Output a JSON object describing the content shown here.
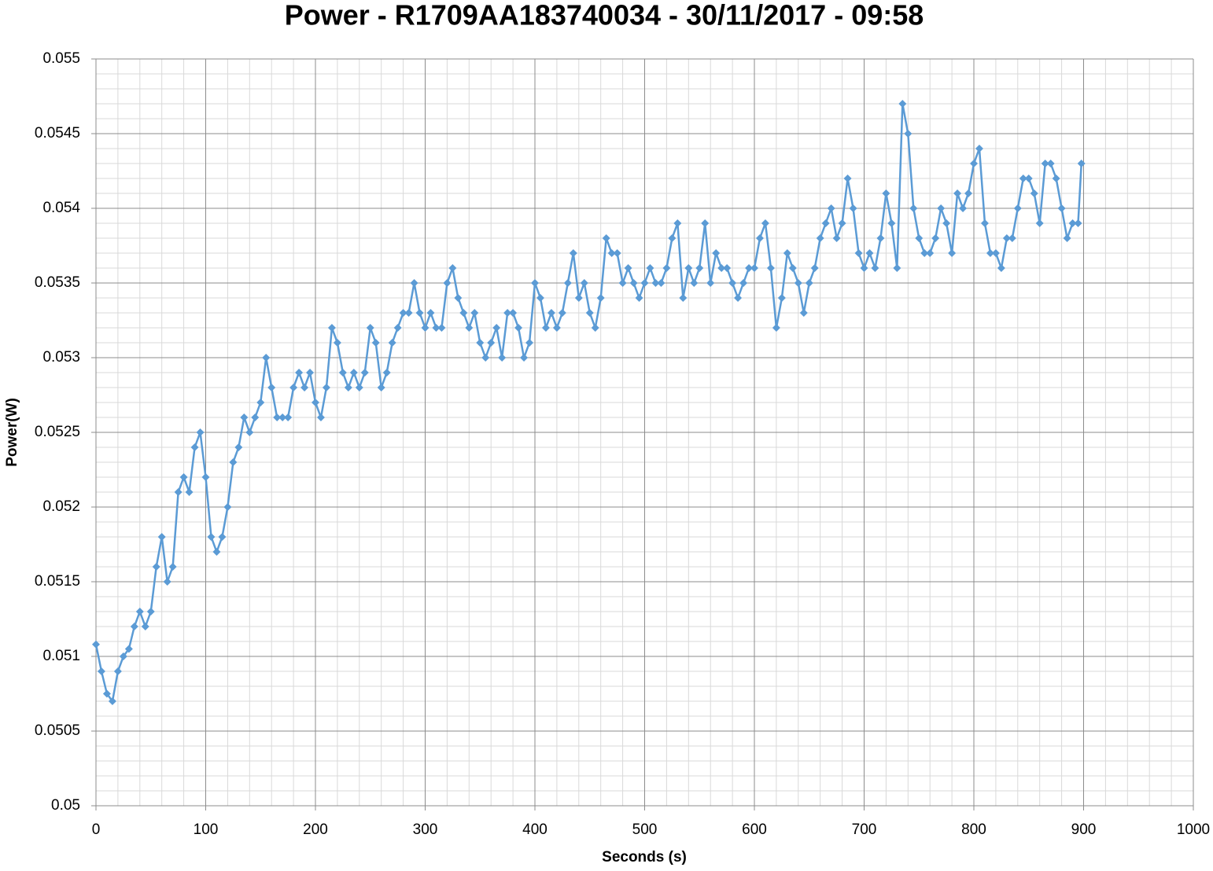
{
  "chart_data": {
    "type": "line",
    "title": "Power - R1709AA183740034 - 30/11/2017 - 09:58",
    "x_label": "Seconds (s)",
    "y_label": "Power(W)",
    "color": "#5b9bd5",
    "marker": "diamond",
    "grid": true,
    "minor_divisions": 5,
    "xlim": [
      0,
      1000
    ],
    "xticks": [
      0,
      100,
      200,
      300,
      400,
      500,
      600,
      700,
      800,
      900,
      1000
    ],
    "ylim": [
      0.05,
      0.055
    ],
    "yticks": [
      0.05,
      0.0505,
      0.051,
      0.0515,
      0.052,
      0.0525,
      0.053,
      0.0535,
      0.054,
      0.0545,
      0.055
    ],
    "x": [
      0,
      5,
      10,
      15,
      20,
      25,
      30,
      35,
      40,
      45,
      50,
      55,
      60,
      65,
      70,
      75,
      80,
      85,
      90,
      95,
      100,
      105,
      110,
      115,
      120,
      125,
      130,
      135,
      140,
      145,
      150,
      155,
      160,
      165,
      170,
      175,
      180,
      185,
      190,
      195,
      200,
      205,
      210,
      215,
      220,
      225,
      230,
      235,
      240,
      245,
      250,
      255,
      260,
      265,
      270,
      275,
      280,
      285,
      290,
      295,
      300,
      305,
      310,
      315,
      320,
      325,
      330,
      335,
      340,
      345,
      350,
      355,
      360,
      365,
      370,
      375,
      380,
      385,
      390,
      395,
      400,
      405,
      410,
      415,
      420,
      425,
      430,
      435,
      440,
      445,
      450,
      455,
      460,
      465,
      470,
      475,
      480,
      485,
      490,
      495,
      500,
      505,
      510,
      515,
      520,
      525,
      530,
      535,
      540,
      545,
      550,
      555,
      560,
      565,
      570,
      575,
      580,
      585,
      590,
      595,
      600,
      605,
      610,
      615,
      620,
      625,
      630,
      635,
      640,
      645,
      650,
      655,
      660,
      665,
      670,
      675,
      680,
      685,
      690,
      695,
      700,
      705,
      710,
      715,
      720,
      725,
      730,
      735,
      740,
      745,
      750,
      755,
      760,
      765,
      770,
      775,
      780,
      785,
      790,
      795,
      800,
      805,
      810,
      815,
      820,
      825,
      830,
      835,
      840,
      845,
      850,
      855,
      860,
      865,
      870,
      875,
      880,
      885,
      890,
      895,
      898
    ],
    "values": [
      0.05108,
      0.0509,
      0.05075,
      0.0507,
      0.0509,
      0.051,
      0.05105,
      0.0512,
      0.0513,
      0.0512,
      0.0513,
      0.0516,
      0.0518,
      0.0515,
      0.0516,
      0.0521,
      0.0522,
      0.0521,
      0.0524,
      0.0525,
      0.0522,
      0.0518,
      0.0517,
      0.0518,
      0.052,
      0.0523,
      0.0524,
      0.0526,
      0.0525,
      0.0526,
      0.0527,
      0.053,
      0.0528,
      0.0526,
      0.0526,
      0.0526,
      0.0528,
      0.0529,
      0.0528,
      0.0529,
      0.0527,
      0.0526,
      0.0528,
      0.0532,
      0.0531,
      0.0529,
      0.0528,
      0.0529,
      0.0528,
      0.0529,
      0.0532,
      0.0531,
      0.0528,
      0.0529,
      0.0531,
      0.0532,
      0.0533,
      0.0533,
      0.0535,
      0.0533,
      0.0532,
      0.0533,
      0.0532,
      0.0532,
      0.0535,
      0.0536,
      0.0534,
      0.0533,
      0.0532,
      0.0533,
      0.0531,
      0.053,
      0.0531,
      0.0532,
      0.053,
      0.0533,
      0.0533,
      0.0532,
      0.053,
      0.0531,
      0.0535,
      0.0534,
      0.0532,
      0.0533,
      0.0532,
      0.0533,
      0.0535,
      0.0537,
      0.0534,
      0.0535,
      0.0533,
      0.0532,
      0.0534,
      0.0538,
      0.0537,
      0.0537,
      0.0535,
      0.0536,
      0.0535,
      0.0534,
      0.0535,
      0.0536,
      0.0535,
      0.0535,
      0.0536,
      0.0538,
      0.0539,
      0.0534,
      0.0536,
      0.0535,
      0.0536,
      0.0539,
      0.0535,
      0.0537,
      0.0536,
      0.0536,
      0.0535,
      0.0534,
      0.0535,
      0.0536,
      0.0536,
      0.0538,
      0.0539,
      0.0536,
      0.0532,
      0.0534,
      0.0537,
      0.0536,
      0.0535,
      0.0533,
      0.0535,
      0.0536,
      0.0538,
      0.0539,
      0.054,
      0.0538,
      0.0539,
      0.0542,
      0.054,
      0.0537,
      0.0536,
      0.0537,
      0.0536,
      0.0538,
      0.0541,
      0.0539,
      0.0536,
      0.0547,
      0.0545,
      0.054,
      0.0538,
      0.0537,
      0.0537,
      0.0538,
      0.054,
      0.0539,
      0.0537,
      0.0541,
      0.054,
      0.0541,
      0.0543,
      0.0544,
      0.0539,
      0.0537,
      0.0537,
      0.0536,
      0.0538,
      0.0538,
      0.054,
      0.0542,
      0.0542,
      0.0541,
      0.0539,
      0.0543,
      0.0543,
      0.0542,
      0.054,
      0.0538,
      0.0539,
      0.0539,
      0.0543
    ]
  }
}
